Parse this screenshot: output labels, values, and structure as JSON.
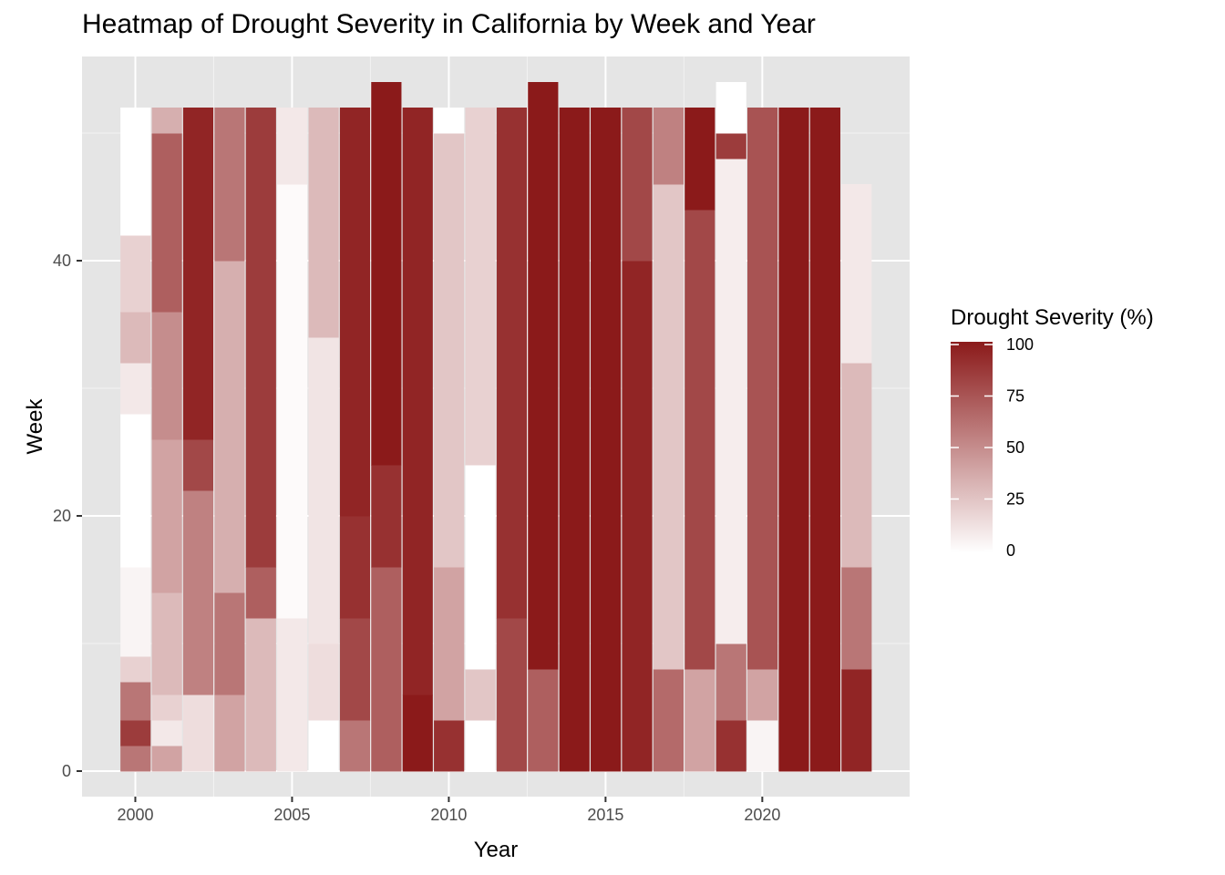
{
  "chart_data": {
    "type": "heatmap",
    "title": "Heatmap of Drought Severity in California by Week and Year",
    "xlabel": "Year",
    "ylabel": "Week",
    "x_ticks": [
      2000,
      2005,
      2010,
      2015,
      2020
    ],
    "y_ticks": [
      0,
      20,
      40
    ],
    "xlim": [
      1998.3,
      2024.7
    ],
    "ylim": [
      -2,
      56
    ],
    "grid": true,
    "legend": {
      "title": "Drought Severity (%)",
      "position": "right",
      "breaks": [
        0,
        25,
        50,
        75,
        100
      ],
      "low_color": "#ffffff",
      "high_color": "#8b1a1a"
    },
    "cell_height_weeks": 2,
    "column_width_years": 0.95,
    "columns": [
      {
        "year": 2000,
        "segments": [
          [
            1,
            3,
            60
          ],
          [
            3,
            5,
            85
          ],
          [
            5,
            8,
            60
          ],
          [
            8,
            10,
            20
          ],
          [
            10,
            17,
            5
          ],
          [
            17,
            29,
            0
          ],
          [
            29,
            33,
            10
          ],
          [
            33,
            37,
            30
          ],
          [
            37,
            43,
            20
          ],
          [
            43,
            53,
            0
          ]
        ]
      },
      {
        "year": 2001,
        "segments": [
          [
            1,
            3,
            40
          ],
          [
            3,
            5,
            10
          ],
          [
            5,
            7,
            20
          ],
          [
            7,
            15,
            30
          ],
          [
            15,
            27,
            40
          ],
          [
            27,
            37,
            50
          ],
          [
            37,
            51,
            70
          ],
          [
            51,
            53,
            35
          ]
        ]
      },
      {
        "year": 2002,
        "segments": [
          [
            1,
            7,
            15
          ],
          [
            7,
            23,
            55
          ],
          [
            23,
            27,
            80
          ],
          [
            27,
            53,
            95
          ]
        ]
      },
      {
        "year": 2003,
        "segments": [
          [
            1,
            7,
            40
          ],
          [
            7,
            15,
            60
          ],
          [
            15,
            41,
            35
          ],
          [
            41,
            53,
            60
          ]
        ]
      },
      {
        "year": 2004,
        "segments": [
          [
            1,
            13,
            30
          ],
          [
            13,
            17,
            70
          ],
          [
            17,
            53,
            85
          ]
        ]
      },
      {
        "year": 2005,
        "segments": [
          [
            1,
            13,
            10
          ],
          [
            13,
            47,
            2
          ],
          [
            47,
            53,
            10
          ]
        ]
      },
      {
        "year": 2006,
        "segments": [
          [
            1,
            5,
            0
          ],
          [
            5,
            11,
            15
          ],
          [
            11,
            35,
            12
          ],
          [
            35,
            53,
            30
          ]
        ]
      },
      {
        "year": 2007,
        "segments": [
          [
            1,
            5,
            60
          ],
          [
            5,
            13,
            80
          ],
          [
            13,
            21,
            90
          ],
          [
            21,
            53,
            95
          ]
        ]
      },
      {
        "year": 2008,
        "segments": [
          [
            1,
            17,
            70
          ],
          [
            17,
            25,
            90
          ],
          [
            25,
            55,
            100
          ]
        ]
      },
      {
        "year": 2009,
        "segments": [
          [
            1,
            7,
            100
          ],
          [
            7,
            53,
            95
          ]
        ]
      },
      {
        "year": 2010,
        "segments": [
          [
            1,
            5,
            90
          ],
          [
            5,
            17,
            40
          ],
          [
            17,
            51,
            25
          ],
          [
            51,
            53,
            0
          ]
        ]
      },
      {
        "year": 2011,
        "segments": [
          [
            1,
            5,
            0
          ],
          [
            5,
            9,
            25
          ],
          [
            9,
            25,
            0
          ],
          [
            25,
            53,
            20
          ]
        ]
      },
      {
        "year": 2012,
        "segments": [
          [
            1,
            13,
            80
          ],
          [
            13,
            53,
            90
          ]
        ]
      },
      {
        "year": 2013,
        "segments": [
          [
            1,
            9,
            70
          ],
          [
            9,
            55,
            100
          ]
        ]
      },
      {
        "year": 2014,
        "segments": [
          [
            1,
            53,
            100
          ]
        ]
      },
      {
        "year": 2015,
        "segments": [
          [
            1,
            53,
            100
          ]
        ]
      },
      {
        "year": 2016,
        "segments": [
          [
            1,
            41,
            95
          ],
          [
            41,
            53,
            80
          ]
        ]
      },
      {
        "year": 2017,
        "segments": [
          [
            1,
            9,
            65
          ],
          [
            9,
            47,
            25
          ],
          [
            47,
            53,
            55
          ]
        ]
      },
      {
        "year": 2018,
        "segments": [
          [
            1,
            9,
            40
          ],
          [
            9,
            45,
            80
          ],
          [
            45,
            53,
            100
          ]
        ]
      },
      {
        "year": 2019,
        "segments": [
          [
            1,
            5,
            90
          ],
          [
            5,
            11,
            60
          ],
          [
            11,
            49,
            8
          ],
          [
            49,
            51,
            85
          ],
          [
            51,
            55,
            0
          ]
        ]
      },
      {
        "year": 2020,
        "segments": [
          [
            1,
            5,
            5
          ],
          [
            5,
            9,
            40
          ],
          [
            9,
            53,
            75
          ]
        ]
      },
      {
        "year": 2021,
        "segments": [
          [
            1,
            53,
            100
          ]
        ]
      },
      {
        "year": 2022,
        "segments": [
          [
            1,
            53,
            100
          ]
        ]
      },
      {
        "year": 2023,
        "segments": [
          [
            1,
            9,
            95
          ],
          [
            9,
            17,
            60
          ],
          [
            17,
            33,
            30
          ],
          [
            33,
            47,
            10
          ]
        ]
      }
    ]
  }
}
